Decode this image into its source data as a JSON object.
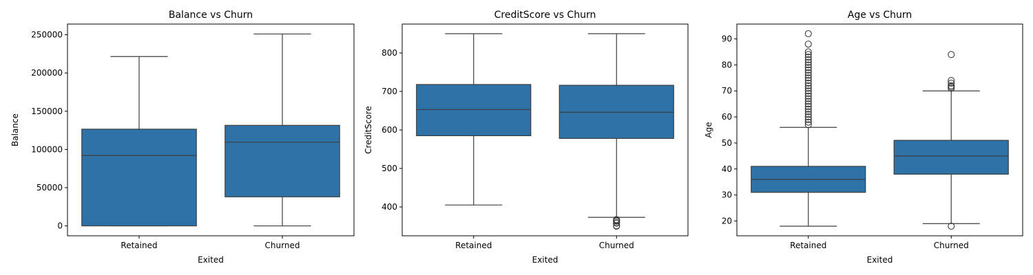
{
  "style": {
    "box_fill": "#2e72a8",
    "line_color": "#3d3d3d"
  },
  "chart_data": [
    {
      "type": "box",
      "title": "Balance vs Churn",
      "xlabel": "Exited",
      "ylabel": "Balance",
      "categories": [
        "Retained",
        "Churned"
      ],
      "ylim": [
        -13000,
        264000
      ],
      "yticks": [
        0,
        50000,
        100000,
        150000,
        200000,
        250000
      ],
      "ytick_labels": [
        "0",
        "50000",
        "100000",
        "150000",
        "200000",
        "250000"
      ],
      "boxes": [
        {
          "category": "Retained",
          "whisker_low": 0,
          "q1": 0,
          "median": 92000,
          "q3": 126500,
          "whisker_high": 221500,
          "outliers": []
        },
        {
          "category": "Churned",
          "whisker_low": 0,
          "q1": 38000,
          "median": 109500,
          "q3": 131500,
          "whisker_high": 251000,
          "outliers": []
        }
      ]
    },
    {
      "type": "box",
      "title": "CreditScore vs Churn",
      "xlabel": "Exited",
      "ylabel": "CreditScore",
      "categories": [
        "Retained",
        "Churned"
      ],
      "ylim": [
        325,
        875
      ],
      "yticks": [
        400,
        500,
        600,
        700,
        800
      ],
      "ytick_labels": [
        "400",
        "500",
        "600",
        "700",
        "800"
      ],
      "boxes": [
        {
          "category": "Retained",
          "whisker_low": 405,
          "q1": 585,
          "median": 653,
          "q3": 718,
          "whisker_high": 850,
          "outliers": []
        },
        {
          "category": "Churned",
          "whisker_low": 373,
          "q1": 578,
          "median": 646,
          "q3": 716,
          "whisker_high": 850,
          "outliers": [
            350,
            351,
            358,
            359,
            363,
            365,
            367
          ]
        }
      ]
    },
    {
      "type": "box",
      "title": "Age vs Churn",
      "xlabel": "Exited",
      "ylabel": "Age",
      "categories": [
        "Retained",
        "Churned"
      ],
      "ylim": [
        14.3,
        95.7
      ],
      "yticks": [
        20,
        30,
        40,
        50,
        60,
        70,
        80,
        90
      ],
      "ytick_labels": [
        "20",
        "30",
        "40",
        "50",
        "60",
        "70",
        "80",
        "90"
      ],
      "boxes": [
        {
          "category": "Retained",
          "whisker_low": 18,
          "q1": 31,
          "median": 36,
          "q3": 41,
          "whisker_high": 56,
          "outliers": [
            57,
            58,
            59,
            60,
            61,
            62,
            63,
            64,
            65,
            66,
            67,
            68,
            69,
            70,
            71,
            72,
            73,
            74,
            75,
            76,
            77,
            78,
            79,
            80,
            81,
            82,
            83,
            84,
            85,
            88,
            92
          ]
        },
        {
          "category": "Churned",
          "whisker_low": 19,
          "q1": 38,
          "median": 45,
          "q3": 51,
          "whisker_high": 70,
          "outliers": [
            18,
            71,
            71.5,
            72,
            73,
            74,
            84
          ]
        }
      ]
    }
  ]
}
